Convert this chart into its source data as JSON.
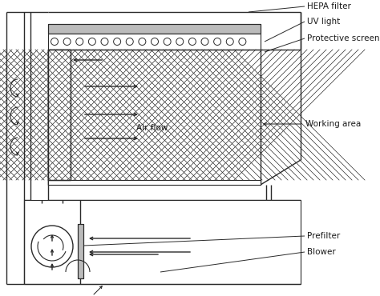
{
  "bg_color": "#ffffff",
  "line_color": "#2a2a2a",
  "lw": 1.0,
  "labels": {
    "hepa_filter": "HEPA filter",
    "uv_light": "UV light",
    "protective_screen": "Protective screen",
    "working_area": "Working area",
    "air_flow": "Air flow",
    "prefilter": "Prefilter",
    "blower": "Blower"
  },
  "label_fs": 7.5
}
